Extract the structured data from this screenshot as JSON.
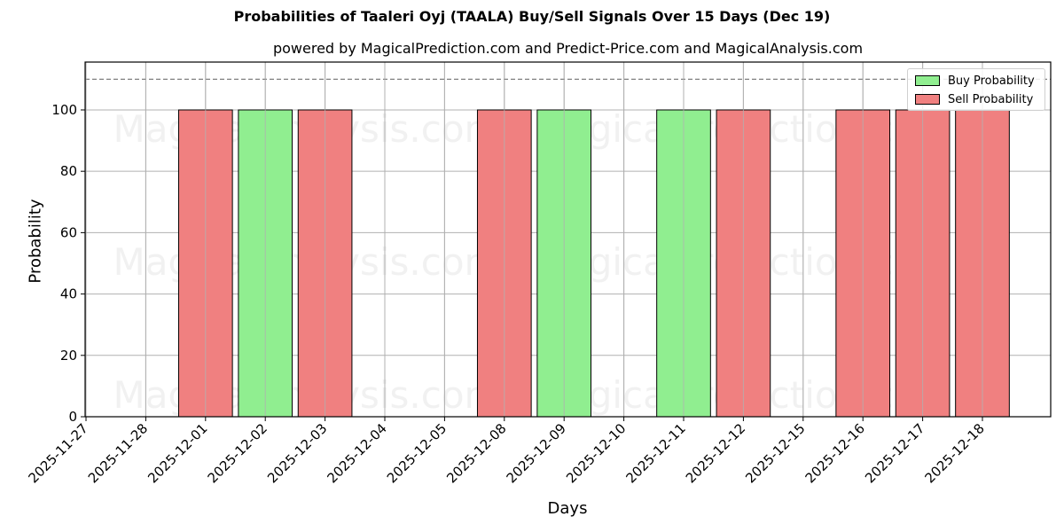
{
  "chart_data": {
    "type": "bar",
    "title": "Probabilities of Taaleri Oyj (TAALA) Buy/Sell Signals Over 15 Days (Dec 19)",
    "subtitle": "powered by MagicalPrediction.com and Predict-Price.com and MagicalAnalysis.com",
    "xlabel": "Days",
    "ylabel": "Probability",
    "ylim": [
      0,
      115.6
    ],
    "yticks": [
      0,
      20,
      40,
      60,
      80,
      100
    ],
    "grid": true,
    "legend_position": "upper right",
    "reference_line": {
      "y": 110,
      "style": "dashed",
      "color": "#808080"
    },
    "categories": [
      "2025-11-27",
      "2025-11-28",
      "2025-12-01",
      "2025-12-02",
      "2025-12-03",
      "2025-12-04",
      "2025-12-05",
      "2025-12-08",
      "2025-12-09",
      "2025-12-10",
      "2025-12-11",
      "2025-12-12",
      "2025-12-15",
      "2025-12-16",
      "2025-12-17",
      "2025-12-18"
    ],
    "series": [
      {
        "name": "Buy Probability",
        "color": "#90ee90",
        "values": [
          0,
          0,
          0,
          100,
          0,
          0,
          0,
          0,
          100,
          0,
          100,
          0,
          0,
          0,
          0,
          0
        ]
      },
      {
        "name": "Sell Probability",
        "color": "#f08080",
        "values": [
          0,
          0,
          100,
          0,
          100,
          0,
          0,
          100,
          0,
          0,
          0,
          100,
          0,
          100,
          100,
          100
        ]
      }
    ],
    "watermarks": [
      "MagicalAnalysis.com",
      "MagicalPrediction.com"
    ]
  },
  "legend": {
    "buy_label": "Buy Probability",
    "sell_label": "Sell Probability",
    "buy_color": "#90ee90",
    "sell_color": "#f08080"
  }
}
